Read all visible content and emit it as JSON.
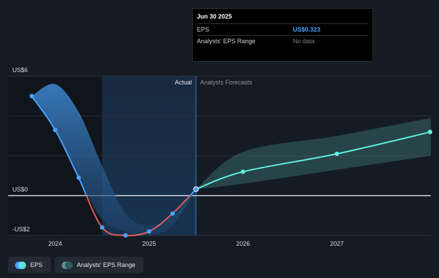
{
  "tooltip": {
    "title": "Jun 30 2025",
    "rows": [
      {
        "label": "EPS",
        "value": "US$0.323"
      },
      {
        "label": "Analysts' EPS Range",
        "value": "No data"
      }
    ]
  },
  "legend": [
    {
      "label": "EPS",
      "icon": "eps-dot-icon"
    },
    {
      "label": "Analysts' EPS Range",
      "icon": "range-dot-icon"
    }
  ],
  "colors": {
    "background": "#151b24",
    "eps_actual": "#4aa3ff",
    "eps_negative": "#e25c5c",
    "eps_forecast": "#62f0e6",
    "range_fill": "#3d7a78"
  },
  "chart_data": {
    "type": "line",
    "actual_label": "Actual",
    "forecast_label": "Analysts Forecasts",
    "y_tick_labels": [
      {
        "value": 6,
        "label": "US$6"
      },
      {
        "value": 0,
        "label": "US$0"
      },
      {
        "value": -2,
        "label": "-US$2"
      }
    ],
    "x_tick_labels": [
      {
        "value": 2024.0,
        "label": "2024"
      },
      {
        "value": 2025.0,
        "label": "2025"
      },
      {
        "value": 2026.0,
        "label": "2026"
      },
      {
        "value": 2027.0,
        "label": "2027"
      }
    ],
    "ylim": [
      -2,
      6
    ],
    "xlim": [
      2023.5,
      2028.0
    ],
    "actual_boundary_x": 2025.5,
    "highlight_start_x": 2024.5,
    "eps_actual": [
      {
        "x": 2023.75,
        "y": 5.0
      },
      {
        "x": 2024.0,
        "y": 3.3
      },
      {
        "x": 2024.25,
        "y": 0.9
      },
      {
        "x": 2024.5,
        "y": -1.6
      },
      {
        "x": 2024.75,
        "y": -2.0
      },
      {
        "x": 2025.0,
        "y": -1.8
      },
      {
        "x": 2025.25,
        "y": -0.9
      },
      {
        "x": 2025.5,
        "y": 0.323
      }
    ],
    "eps_forecast": [
      {
        "x": 2025.5,
        "y": 0.323
      },
      {
        "x": 2026.0,
        "y": 1.2
      },
      {
        "x": 2027.0,
        "y": 2.1
      },
      {
        "x": 2028.0,
        "y": 3.2
      }
    ],
    "actual_band_upper": [
      {
        "x": 2023.75,
        "y": 5.0
      },
      {
        "x": 2024.0,
        "y": 5.6
      },
      {
        "x": 2024.25,
        "y": 4.2
      },
      {
        "x": 2024.5,
        "y": 1.5
      },
      {
        "x": 2024.75,
        "y": -0.9
      },
      {
        "x": 2025.0,
        "y": -1.5
      },
      {
        "x": 2025.25,
        "y": -1.0
      },
      {
        "x": 2025.5,
        "y": 0.323
      }
    ],
    "actual_band_lower": [
      {
        "x": 2023.75,
        "y": 5.0
      },
      {
        "x": 2024.0,
        "y": 3.3
      },
      {
        "x": 2024.25,
        "y": 0.9
      },
      {
        "x": 2024.5,
        "y": -1.2
      },
      {
        "x": 2024.75,
        "y": -1.8
      },
      {
        "x": 2025.0,
        "y": -2.0
      },
      {
        "x": 2025.25,
        "y": -1.5
      },
      {
        "x": 2025.5,
        "y": 0.323
      }
    ],
    "forecast_band_upper": [
      {
        "x": 2025.5,
        "y": 0.323
      },
      {
        "x": 2026.0,
        "y": 2.2
      },
      {
        "x": 2027.0,
        "y": 3.0
      },
      {
        "x": 2028.0,
        "y": 3.9
      }
    ],
    "forecast_band_lower": [
      {
        "x": 2025.5,
        "y": 0.323
      },
      {
        "x": 2026.0,
        "y": 0.6
      },
      {
        "x": 2027.0,
        "y": 1.3
      },
      {
        "x": 2028.0,
        "y": 2.0
      }
    ]
  }
}
